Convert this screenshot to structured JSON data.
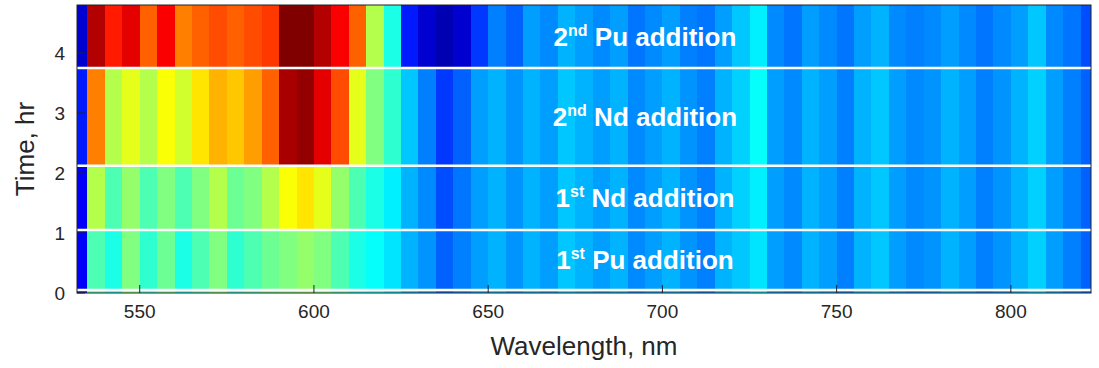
{
  "chart_data": {
    "type": "heatmap",
    "x_label": "Wavelength, nm",
    "y_label": "Time, hr",
    "xlim": [
      532,
      823
    ],
    "ylim": [
      0,
      4.8
    ],
    "xticks": [
      550,
      600,
      650,
      700,
      750,
      800
    ],
    "yticks": [
      0,
      1,
      2,
      3,
      4
    ],
    "x_bins": [
      532,
      535,
      540,
      545,
      550,
      555,
      560,
      565,
      570,
      575,
      580,
      585,
      590,
      595,
      600,
      605,
      610,
      615,
      620,
      625,
      630,
      635,
      640,
      645,
      650,
      655,
      660,
      665,
      670,
      675,
      680,
      685,
      690,
      695,
      700,
      705,
      710,
      715,
      720,
      725,
      730,
      735,
      740,
      745,
      750,
      755,
      760,
      765,
      770,
      775,
      780,
      785,
      790,
      795,
      800,
      805,
      810,
      815,
      820,
      823
    ],
    "y_bins": [
      0,
      1.05,
      2.12,
      3.75,
      4.8
    ],
    "color_range": [
      0,
      1
    ],
    "cells": [
      [
        0.12,
        0.45,
        0.4,
        0.5,
        0.42,
        0.48,
        0.4,
        0.45,
        0.5,
        0.42,
        0.45,
        0.48,
        0.5,
        0.52,
        0.5,
        0.45,
        0.4,
        0.38,
        0.35,
        0.3,
        0.27,
        0.22,
        0.25,
        0.28,
        0.3,
        0.27,
        0.3,
        0.28,
        0.32,
        0.3,
        0.28,
        0.3,
        0.26,
        0.28,
        0.3,
        0.27,
        0.25,
        0.3,
        0.32,
        0.35,
        0.28,
        0.26,
        0.3,
        0.28,
        0.25,
        0.3,
        0.32,
        0.28,
        0.26,
        0.27,
        0.3,
        0.28,
        0.25,
        0.27,
        0.3,
        0.33,
        0.28,
        0.25,
        0.22
      ],
      [
        0.12,
        0.55,
        0.45,
        0.52,
        0.45,
        0.5,
        0.45,
        0.5,
        0.55,
        0.48,
        0.5,
        0.55,
        0.62,
        0.65,
        0.6,
        0.52,
        0.45,
        0.4,
        0.36,
        0.3,
        0.26,
        0.2,
        0.24,
        0.28,
        0.3,
        0.27,
        0.3,
        0.28,
        0.32,
        0.3,
        0.28,
        0.3,
        0.26,
        0.28,
        0.3,
        0.27,
        0.25,
        0.3,
        0.33,
        0.36,
        0.28,
        0.26,
        0.3,
        0.28,
        0.25,
        0.3,
        0.32,
        0.28,
        0.26,
        0.27,
        0.3,
        0.28,
        0.25,
        0.27,
        0.3,
        0.33,
        0.28,
        0.25,
        0.22
      ],
      [
        0.15,
        0.75,
        0.55,
        0.6,
        0.55,
        0.62,
        0.58,
        0.65,
        0.7,
        0.68,
        0.72,
        0.78,
        0.96,
        0.98,
        0.9,
        0.8,
        0.6,
        0.5,
        0.42,
        0.32,
        0.25,
        0.18,
        0.22,
        0.28,
        0.3,
        0.27,
        0.3,
        0.28,
        0.32,
        0.3,
        0.28,
        0.3,
        0.26,
        0.28,
        0.3,
        0.27,
        0.25,
        0.3,
        0.33,
        0.38,
        0.28,
        0.26,
        0.3,
        0.28,
        0.25,
        0.3,
        0.32,
        0.28,
        0.26,
        0.27,
        0.3,
        0.28,
        0.25,
        0.27,
        0.3,
        0.33,
        0.28,
        0.25,
        0.22
      ],
      [
        0.08,
        0.95,
        0.85,
        0.9,
        0.78,
        0.88,
        0.75,
        0.78,
        0.8,
        0.78,
        0.8,
        0.82,
        1.0,
        1.0,
        0.95,
        0.88,
        0.78,
        0.55,
        0.4,
        0.15,
        0.08,
        0.05,
        0.08,
        0.18,
        0.25,
        0.22,
        0.28,
        0.26,
        0.3,
        0.28,
        0.26,
        0.28,
        0.24,
        0.26,
        0.28,
        0.25,
        0.24,
        0.28,
        0.32,
        0.36,
        0.26,
        0.24,
        0.28,
        0.26,
        0.24,
        0.28,
        0.3,
        0.26,
        0.25,
        0.26,
        0.28,
        0.26,
        0.24,
        0.26,
        0.28,
        0.32,
        0.26,
        0.24,
        0.2
      ]
    ],
    "annotations": [
      {
        "text": "1st Pu addition",
        "time": 0.05,
        "x": 695
      },
      {
        "text": "1st Nd addition",
        "time": 1.05,
        "x": 695
      },
      {
        "text": "2nd Nd addition",
        "time": 2.12,
        "x": 695
      },
      {
        "text": "2nd Pu addition",
        "time": 3.75,
        "x": 695
      }
    ]
  }
}
